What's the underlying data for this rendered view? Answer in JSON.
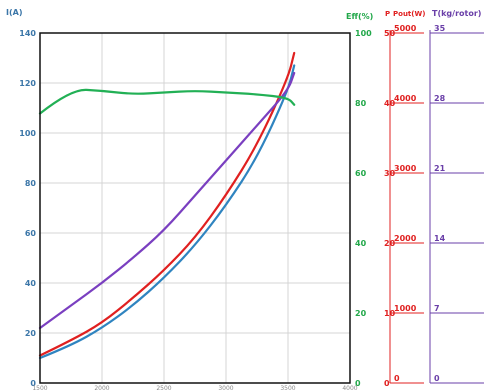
{
  "chart_data": {
    "type": "line",
    "x": [
      1500,
      1750,
      2000,
      2250,
      2500,
      2750,
      3000,
      3250,
      3500,
      3550
    ],
    "xlim": [
      1500,
      4000
    ],
    "x_ticks": [
      "1500",
      "2000",
      "2500",
      "3000",
      "3500",
      "4000"
    ],
    "axes": {
      "left": {
        "label": "I(A)",
        "range": [
          0,
          140
        ],
        "ticks": [
          "0",
          "20",
          "40",
          "60",
          "80",
          "100",
          "120",
          "140"
        ],
        "color": "#3b76a8"
      },
      "eff": {
        "label": "Eff(%)",
        "range": [
          0,
          100
        ],
        "ticks": [
          "0",
          "20",
          "40",
          "60",
          "80",
          "100"
        ],
        "color": "#22a84a"
      },
      "p": {
        "label": "P",
        "ticks": [
          "0",
          "10",
          "20",
          "30",
          "40",
          "50"
        ],
        "color": "#e02020"
      },
      "pout": {
        "label": "Pout(W)",
        "range": [
          0,
          5000
        ],
        "ticks": [
          "0",
          "1000",
          "2000",
          "3000",
          "4000",
          "5000"
        ],
        "color": "#e02020"
      },
      "t": {
        "label": "T(kg/rotor)",
        "range": [
          0,
          35
        ],
        "ticks": [
          "0",
          "7",
          "14",
          "21",
          "28",
          "35"
        ],
        "color": "#6a3fa8"
      }
    },
    "series": [
      {
        "color": "#2f84c0",
        "axis": "left",
        "values": [
          10,
          15,
          22,
          31,
          42,
          55,
          71,
          90,
          117,
          127
        ]
      },
      {
        "color": "#e02020",
        "axis": "left",
        "values": [
          11,
          17,
          24,
          34,
          45,
          58,
          75,
          95,
          122,
          132
        ]
      },
      {
        "color": "#7a3fc0",
        "axis": "left",
        "values": [
          22,
          31,
          40,
          50,
          61,
          75,
          89,
          103,
          117,
          124
        ]
      },
      {
        "color": "#22b055",
        "axis": "eff",
        "values": [
          77,
          84,
          83.5,
          82.5,
          83,
          83.5,
          83,
          82.5,
          81.5,
          79.5
        ]
      }
    ],
    "grid": true
  }
}
